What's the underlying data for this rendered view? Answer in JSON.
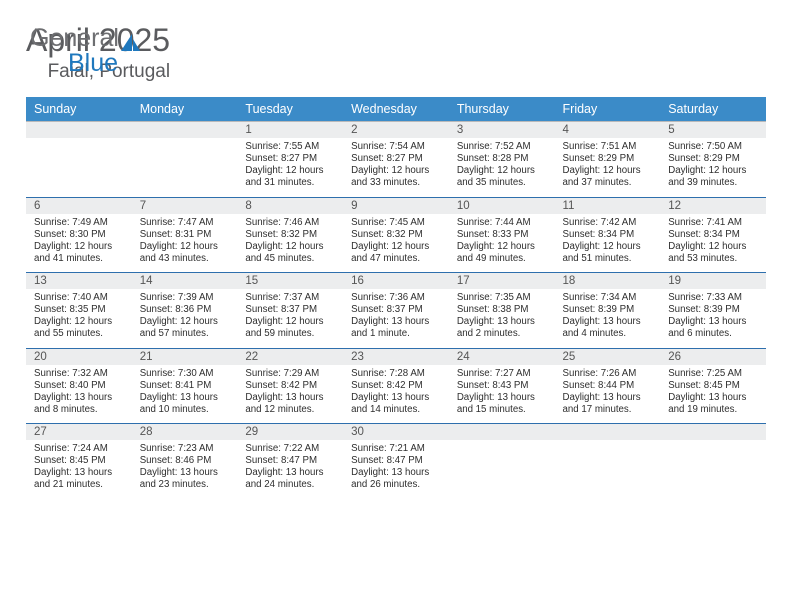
{
  "brand": {
    "word1": "General",
    "word2": "Blue",
    "sail_color": "#1f78bd",
    "text_color_gray": "#6d6e71"
  },
  "header": {
    "title": "April 2025",
    "location": "Faial, Portugal"
  },
  "styles": {
    "weekday_bg": "#3b8bc8",
    "daynum_bg": "#ecedee",
    "week_divider": "#2e6fad",
    "page_bg": "#ffffff"
  },
  "weekdays": [
    "Sunday",
    "Monday",
    "Tuesday",
    "Wednesday",
    "Thursday",
    "Friday",
    "Saturday"
  ],
  "weeks": [
    {
      "nums": [
        "",
        "",
        "1",
        "2",
        "3",
        "4",
        "5"
      ],
      "cells": [
        null,
        null,
        {
          "sunrise": "Sunrise: 7:55 AM",
          "sunset": "Sunset: 8:27 PM",
          "d1": "Daylight: 12 hours",
          "d2": "and 31 minutes."
        },
        {
          "sunrise": "Sunrise: 7:54 AM",
          "sunset": "Sunset: 8:27 PM",
          "d1": "Daylight: 12 hours",
          "d2": "and 33 minutes."
        },
        {
          "sunrise": "Sunrise: 7:52 AM",
          "sunset": "Sunset: 8:28 PM",
          "d1": "Daylight: 12 hours",
          "d2": "and 35 minutes."
        },
        {
          "sunrise": "Sunrise: 7:51 AM",
          "sunset": "Sunset: 8:29 PM",
          "d1": "Daylight: 12 hours",
          "d2": "and 37 minutes."
        },
        {
          "sunrise": "Sunrise: 7:50 AM",
          "sunset": "Sunset: 8:29 PM",
          "d1": "Daylight: 12 hours",
          "d2": "and 39 minutes."
        }
      ]
    },
    {
      "nums": [
        "6",
        "7",
        "8",
        "9",
        "10",
        "11",
        "12"
      ],
      "cells": [
        {
          "sunrise": "Sunrise: 7:49 AM",
          "sunset": "Sunset: 8:30 PM",
          "d1": "Daylight: 12 hours",
          "d2": "and 41 minutes."
        },
        {
          "sunrise": "Sunrise: 7:47 AM",
          "sunset": "Sunset: 8:31 PM",
          "d1": "Daylight: 12 hours",
          "d2": "and 43 minutes."
        },
        {
          "sunrise": "Sunrise: 7:46 AM",
          "sunset": "Sunset: 8:32 PM",
          "d1": "Daylight: 12 hours",
          "d2": "and 45 minutes."
        },
        {
          "sunrise": "Sunrise: 7:45 AM",
          "sunset": "Sunset: 8:32 PM",
          "d1": "Daylight: 12 hours",
          "d2": "and 47 minutes."
        },
        {
          "sunrise": "Sunrise: 7:44 AM",
          "sunset": "Sunset: 8:33 PM",
          "d1": "Daylight: 12 hours",
          "d2": "and 49 minutes."
        },
        {
          "sunrise": "Sunrise: 7:42 AM",
          "sunset": "Sunset: 8:34 PM",
          "d1": "Daylight: 12 hours",
          "d2": "and 51 minutes."
        },
        {
          "sunrise": "Sunrise: 7:41 AM",
          "sunset": "Sunset: 8:34 PM",
          "d1": "Daylight: 12 hours",
          "d2": "and 53 minutes."
        }
      ]
    },
    {
      "nums": [
        "13",
        "14",
        "15",
        "16",
        "17",
        "18",
        "19"
      ],
      "cells": [
        {
          "sunrise": "Sunrise: 7:40 AM",
          "sunset": "Sunset: 8:35 PM",
          "d1": "Daylight: 12 hours",
          "d2": "and 55 minutes."
        },
        {
          "sunrise": "Sunrise: 7:39 AM",
          "sunset": "Sunset: 8:36 PM",
          "d1": "Daylight: 12 hours",
          "d2": "and 57 minutes."
        },
        {
          "sunrise": "Sunrise: 7:37 AM",
          "sunset": "Sunset: 8:37 PM",
          "d1": "Daylight: 12 hours",
          "d2": "and 59 minutes."
        },
        {
          "sunrise": "Sunrise: 7:36 AM",
          "sunset": "Sunset: 8:37 PM",
          "d1": "Daylight: 13 hours",
          "d2": "and 1 minute."
        },
        {
          "sunrise": "Sunrise: 7:35 AM",
          "sunset": "Sunset: 8:38 PM",
          "d1": "Daylight: 13 hours",
          "d2": "and 2 minutes."
        },
        {
          "sunrise": "Sunrise: 7:34 AM",
          "sunset": "Sunset: 8:39 PM",
          "d1": "Daylight: 13 hours",
          "d2": "and 4 minutes."
        },
        {
          "sunrise": "Sunrise: 7:33 AM",
          "sunset": "Sunset: 8:39 PM",
          "d1": "Daylight: 13 hours",
          "d2": "and 6 minutes."
        }
      ]
    },
    {
      "nums": [
        "20",
        "21",
        "22",
        "23",
        "24",
        "25",
        "26"
      ],
      "cells": [
        {
          "sunrise": "Sunrise: 7:32 AM",
          "sunset": "Sunset: 8:40 PM",
          "d1": "Daylight: 13 hours",
          "d2": "and 8 minutes."
        },
        {
          "sunrise": "Sunrise: 7:30 AM",
          "sunset": "Sunset: 8:41 PM",
          "d1": "Daylight: 13 hours",
          "d2": "and 10 minutes."
        },
        {
          "sunrise": "Sunrise: 7:29 AM",
          "sunset": "Sunset: 8:42 PM",
          "d1": "Daylight: 13 hours",
          "d2": "and 12 minutes."
        },
        {
          "sunrise": "Sunrise: 7:28 AM",
          "sunset": "Sunset: 8:42 PM",
          "d1": "Daylight: 13 hours",
          "d2": "and 14 minutes."
        },
        {
          "sunrise": "Sunrise: 7:27 AM",
          "sunset": "Sunset: 8:43 PM",
          "d1": "Daylight: 13 hours",
          "d2": "and 15 minutes."
        },
        {
          "sunrise": "Sunrise: 7:26 AM",
          "sunset": "Sunset: 8:44 PM",
          "d1": "Daylight: 13 hours",
          "d2": "and 17 minutes."
        },
        {
          "sunrise": "Sunrise: 7:25 AM",
          "sunset": "Sunset: 8:45 PM",
          "d1": "Daylight: 13 hours",
          "d2": "and 19 minutes."
        }
      ]
    },
    {
      "nums": [
        "27",
        "28",
        "29",
        "30",
        "",
        "",
        ""
      ],
      "cells": [
        {
          "sunrise": "Sunrise: 7:24 AM",
          "sunset": "Sunset: 8:45 PM",
          "d1": "Daylight: 13 hours",
          "d2": "and 21 minutes."
        },
        {
          "sunrise": "Sunrise: 7:23 AM",
          "sunset": "Sunset: 8:46 PM",
          "d1": "Daylight: 13 hours",
          "d2": "and 23 minutes."
        },
        {
          "sunrise": "Sunrise: 7:22 AM",
          "sunset": "Sunset: 8:47 PM",
          "d1": "Daylight: 13 hours",
          "d2": "and 24 minutes."
        },
        {
          "sunrise": "Sunrise: 7:21 AM",
          "sunset": "Sunset: 8:47 PM",
          "d1": "Daylight: 13 hours",
          "d2": "and 26 minutes."
        },
        null,
        null,
        null
      ]
    }
  ]
}
